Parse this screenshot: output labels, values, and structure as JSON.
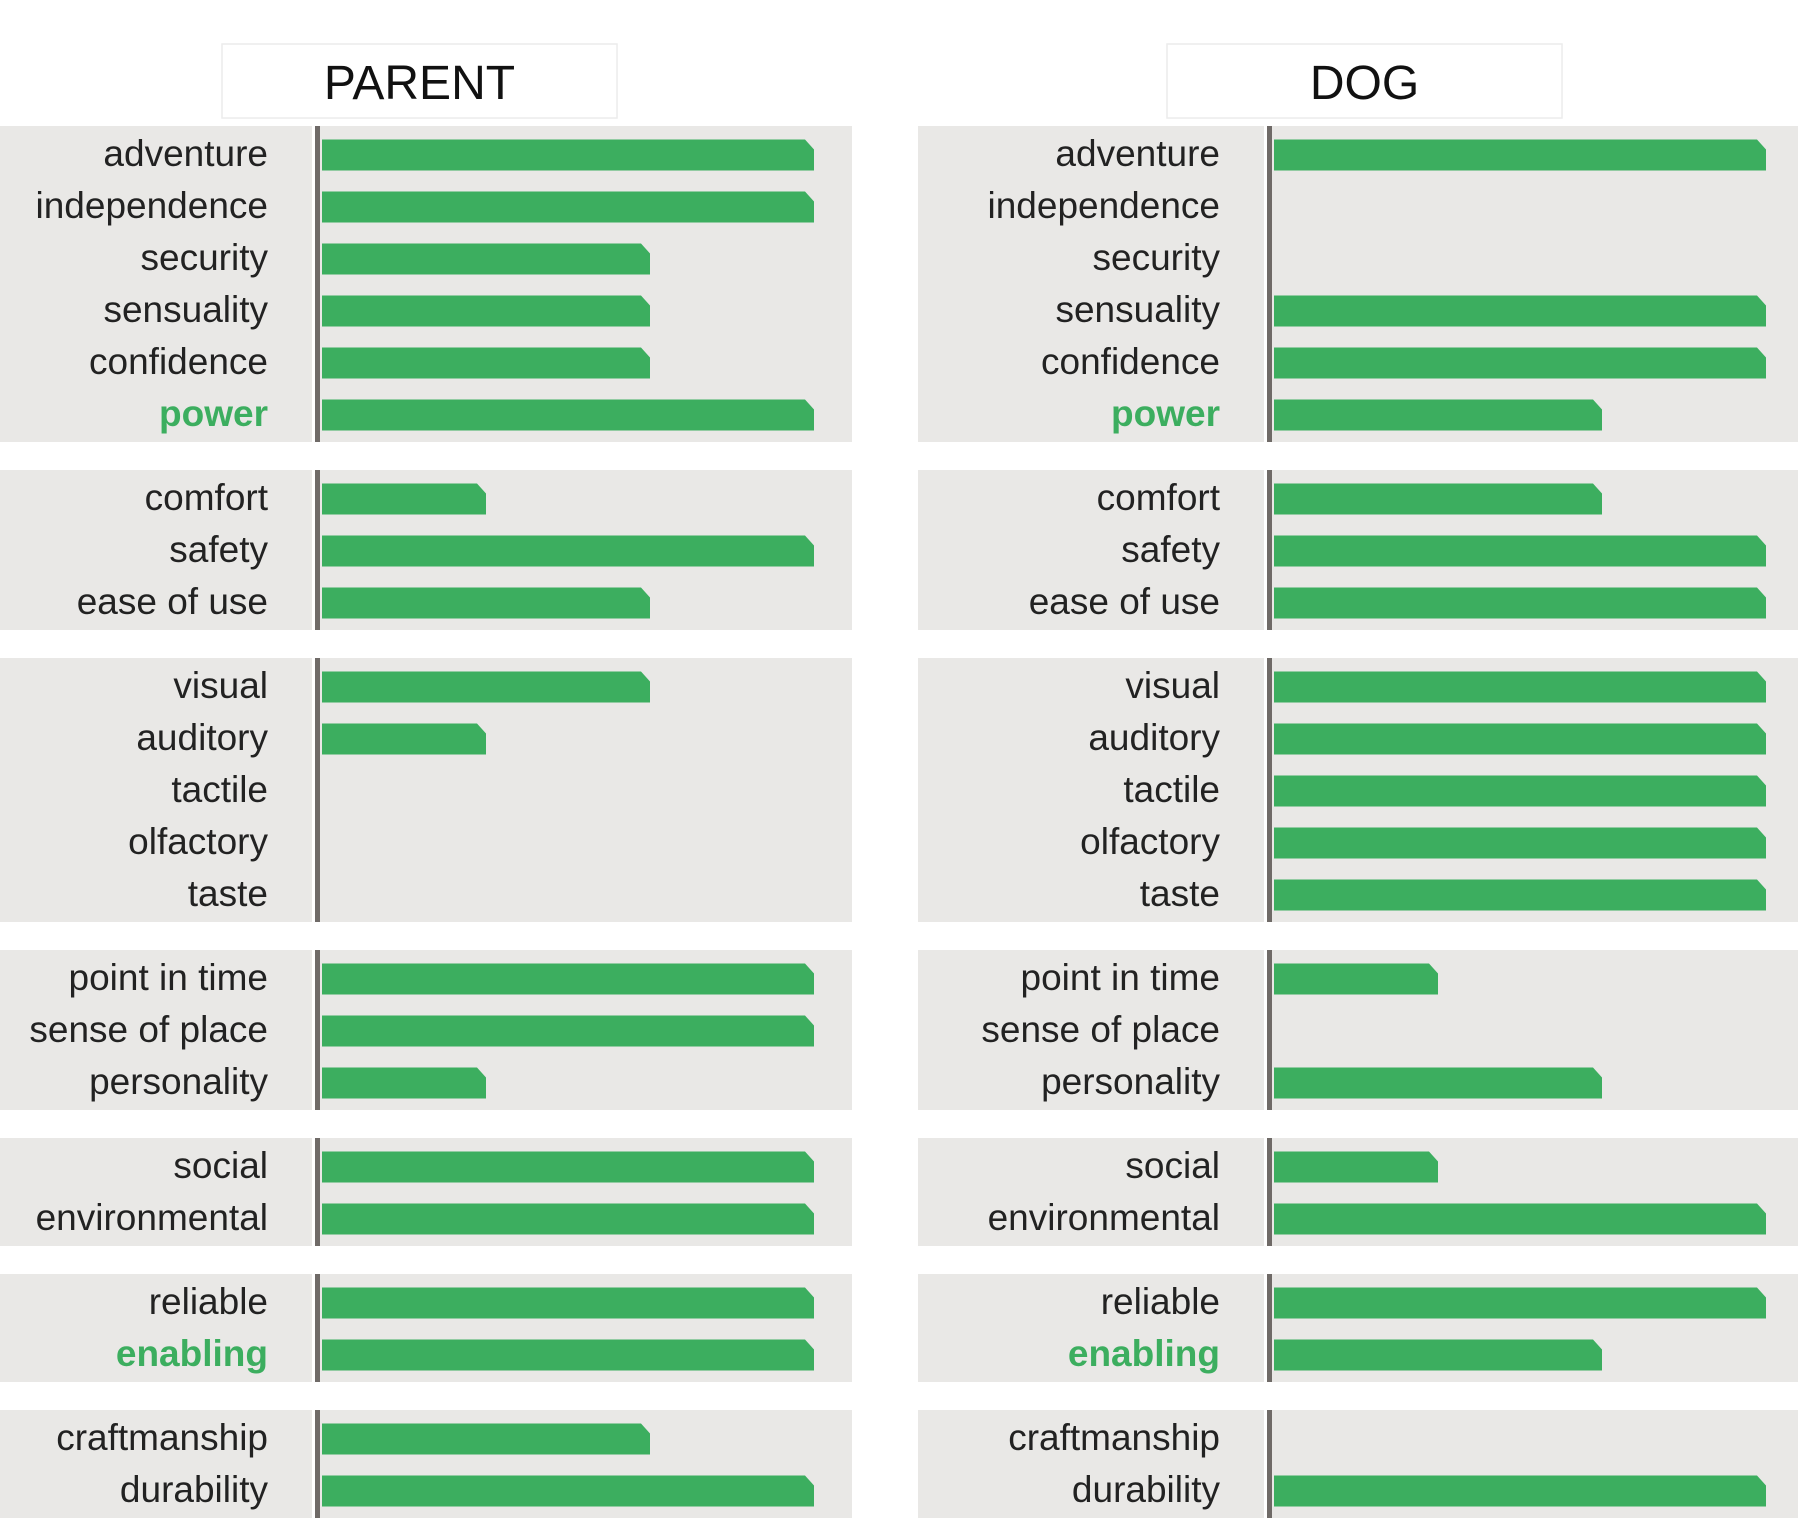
{
  "colors": {
    "bar": "#3cae5f",
    "highlight_label": "#3cae5f",
    "group_background": "#e9e8e6",
    "axis": "#6f6a67",
    "label": "#222222",
    "header_border": "#ececec"
  },
  "chart_data": [
    {
      "type": "bar",
      "orientation": "horizontal",
      "title": "PARENT",
      "xlim": [
        0,
        3
      ],
      "grid": false,
      "groups": [
        {
          "categories": [
            "adventure",
            "independence",
            "security",
            "sensuality",
            "confidence",
            "power"
          ],
          "values": [
            3,
            3,
            2,
            2,
            2,
            3
          ],
          "highlighted": [
            "power"
          ]
        },
        {
          "categories": [
            "comfort",
            "safety",
            "ease of use"
          ],
          "values": [
            1,
            3,
            2
          ],
          "highlighted": []
        },
        {
          "categories": [
            "visual",
            "auditory",
            "tactile",
            "olfactory",
            "taste"
          ],
          "values": [
            2,
            1,
            0,
            0,
            0
          ],
          "highlighted": []
        },
        {
          "categories": [
            "point in time",
            "sense of place",
            "personality"
          ],
          "values": [
            3,
            3,
            1
          ],
          "highlighted": []
        },
        {
          "categories": [
            "social",
            "environmental"
          ],
          "values": [
            3,
            3
          ],
          "highlighted": []
        },
        {
          "categories": [
            "reliable",
            "enabling"
          ],
          "values": [
            3,
            3
          ],
          "highlighted": [
            "enabling"
          ]
        },
        {
          "categories": [
            "craftmanship",
            "durability"
          ],
          "values": [
            2,
            3
          ],
          "highlighted": []
        }
      ]
    },
    {
      "type": "bar",
      "orientation": "horizontal",
      "title": "DOG",
      "xlim": [
        0,
        3
      ],
      "grid": false,
      "groups": [
        {
          "categories": [
            "adventure",
            "independence",
            "security",
            "sensuality",
            "confidence",
            "power"
          ],
          "values": [
            3,
            0,
            0,
            3,
            3,
            2
          ],
          "highlighted": [
            "power"
          ]
        },
        {
          "categories": [
            "comfort",
            "safety",
            "ease of use"
          ],
          "values": [
            2,
            3,
            3
          ],
          "highlighted": []
        },
        {
          "categories": [
            "visual",
            "auditory",
            "tactile",
            "olfactory",
            "taste"
          ],
          "values": [
            3,
            3,
            3,
            3,
            3
          ],
          "highlighted": []
        },
        {
          "categories": [
            "point in time",
            "sense of place",
            "personality"
          ],
          "values": [
            1,
            0,
            2
          ],
          "highlighted": []
        },
        {
          "categories": [
            "social",
            "environmental"
          ],
          "values": [
            1,
            3
          ],
          "highlighted": []
        },
        {
          "categories": [
            "reliable",
            "enabling"
          ],
          "values": [
            3,
            2
          ],
          "highlighted": [
            "enabling"
          ]
        },
        {
          "categories": [
            "craftmanship",
            "durability"
          ],
          "values": [
            0,
            3
          ],
          "highlighted": []
        }
      ]
    }
  ]
}
